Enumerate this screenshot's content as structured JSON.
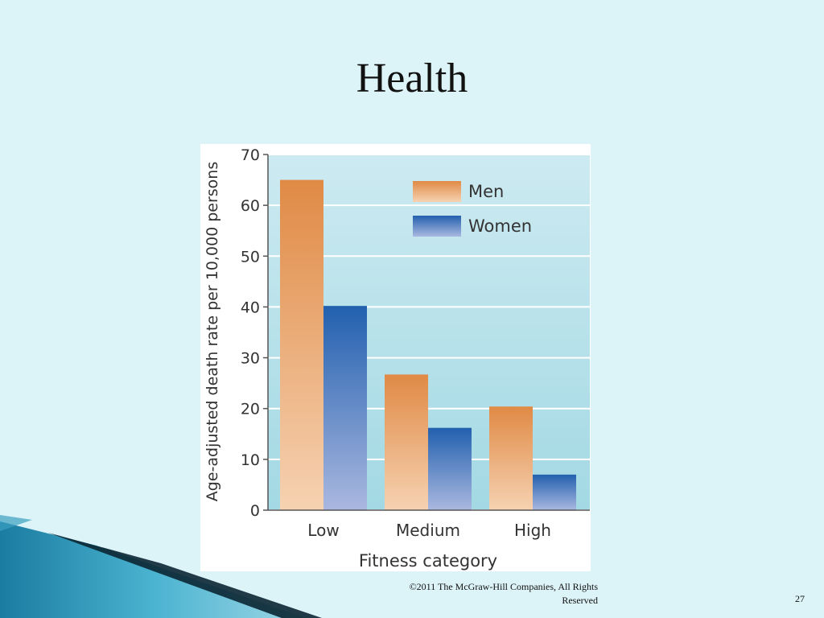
{
  "slide": {
    "title": "Health",
    "copyright": "©2011 The McGraw-Hill Companies, All Rights Reserved",
    "page_number": "27"
  },
  "colors": {
    "background": "#dcf3f8",
    "plot_background": "#a9dce6",
    "men": "#e08a45",
    "women": "#2260ae"
  },
  "chart_data": {
    "type": "bar",
    "categories": [
      "Low",
      "Medium",
      "High"
    ],
    "series": [
      {
        "name": "Men",
        "values": [
          65,
          26.7,
          20.4
        ]
      },
      {
        "name": "Women",
        "values": [
          40.2,
          16.2,
          7
        ]
      }
    ],
    "xlabel": "Fitness category",
    "ylabel": "Age-adjusted death rate per 10,000 persons",
    "ylim": [
      0,
      70
    ],
    "yticks": [
      0,
      10,
      20,
      30,
      40,
      50,
      60,
      70
    ],
    "grid": true,
    "legend_position": "top-right"
  }
}
